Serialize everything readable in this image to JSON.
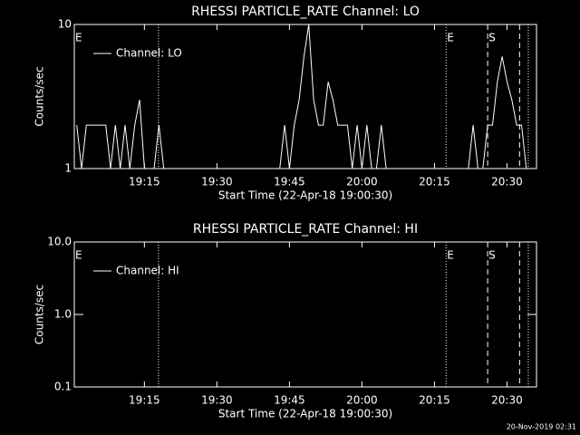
{
  "chart_data": [
    {
      "type": "line",
      "title": "RHESSI PARTICLE_RATE Channel: LO",
      "xlabel": "Start Time (22-Apr-18 19:00:30)",
      "ylabel": "Counts/sec",
      "ylog": true,
      "ylim": [
        1,
        10
      ],
      "yticks": [
        1,
        10
      ],
      "xlim": [
        0.5,
        96.1
      ],
      "xticks": [
        {
          "value": 15,
          "label": "19:15"
        },
        {
          "value": 30,
          "label": "19:30"
        },
        {
          "value": 45,
          "label": "19:45"
        },
        {
          "value": 60,
          "label": "20:00"
        },
        {
          "value": 75,
          "label": "20:15"
        },
        {
          "value": 90,
          "label": "20:30"
        }
      ],
      "x": [
        1,
        2,
        3,
        4,
        5,
        6,
        7,
        8,
        9,
        10,
        11,
        12,
        13,
        14,
        15,
        16,
        17,
        18,
        19,
        20,
        43,
        44,
        45,
        46,
        47,
        48,
        49,
        50,
        51,
        52,
        53,
        54,
        55,
        56,
        57,
        58,
        59,
        60,
        61,
        62,
        63,
        64,
        65,
        82,
        83,
        84,
        85,
        86,
        87,
        88,
        89,
        90,
        91,
        92,
        93,
        94,
        95
      ],
      "series": [
        {
          "name": "Channel: LO",
          "color": "#ffffff",
          "values": [
            2,
            1,
            2,
            2,
            2,
            2,
            2,
            1,
            2,
            1,
            2,
            1,
            2,
            3,
            1,
            1,
            1,
            2,
            1,
            1,
            1,
            2,
            1,
            2,
            3,
            6,
            10,
            3,
            2,
            2,
            4,
            3,
            2,
            2,
            2,
            1,
            2,
            1,
            2,
            1,
            1,
            2,
            1,
            1,
            2,
            1,
            1,
            2,
            2,
            4,
            6,
            4,
            3,
            2,
            2,
            1,
            1
          ]
        }
      ],
      "markers": [
        {
          "x": 17.9,
          "style": "dotted"
        },
        {
          "x": 77.4,
          "style": "dotted"
        },
        {
          "x": 86.0,
          "style": "dashed"
        },
        {
          "x": 92.6,
          "style": "dashed"
        },
        {
          "x": 94.4,
          "style": "dotted"
        }
      ],
      "annotations": [
        {
          "text": "E",
          "x": 0.5
        },
        {
          "text": "E",
          "x": 77.4
        },
        {
          "text": "S",
          "x": 86.0
        }
      ]
    },
    {
      "type": "line",
      "title": "RHESSI PARTICLE_RATE Channel: HI",
      "xlabel": "Start Time (22-Apr-18 19:00:30)",
      "ylabel": "Counts/sec",
      "ylog": true,
      "ylim": [
        0.1,
        10
      ],
      "yticks": [
        0.1,
        {
          "value": 1,
          "label": "1.0"
        },
        {
          "value": 10,
          "label": "10.0"
        }
      ],
      "xlim": [
        0.5,
        96.1
      ],
      "xticks": [
        {
          "value": 15,
          "label": "19:15"
        },
        {
          "value": 30,
          "label": "19:30"
        },
        {
          "value": 45,
          "label": "19:45"
        },
        {
          "value": 60,
          "label": "20:00"
        },
        {
          "value": 75,
          "label": "20:15"
        },
        {
          "value": 90,
          "label": "20:30"
        }
      ],
      "series": [
        {
          "name": "Channel: HI",
          "color": "#ffffff",
          "values": []
        }
      ],
      "markers": [
        {
          "x": 17.9,
          "style": "dotted"
        },
        {
          "x": 77.4,
          "style": "dotted"
        },
        {
          "x": 86.0,
          "style": "dashed"
        },
        {
          "x": 92.6,
          "style": "dashed"
        },
        {
          "x": 94.4,
          "style": "dotted"
        }
      ],
      "annotations": [
        {
          "text": "E",
          "x": 0.5
        },
        {
          "text": "E",
          "x": 77.4
        },
        {
          "text": "S",
          "x": 86.0
        }
      ]
    }
  ],
  "footer": "20-Nov-2019 02:31"
}
